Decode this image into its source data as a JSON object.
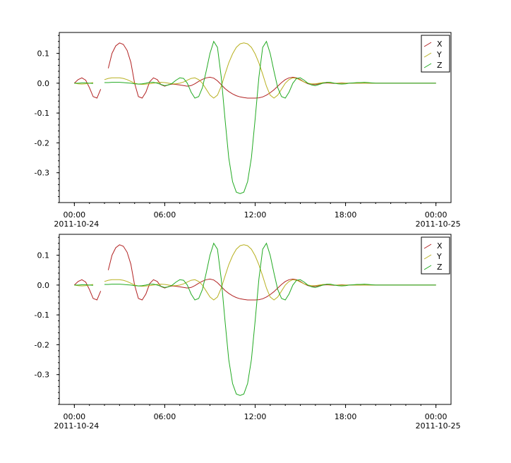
{
  "chart_data": [
    {
      "type": "line",
      "title": "",
      "xlabel": "",
      "ylabel": "",
      "x_ticks": [
        {
          "time": "00:00",
          "date": "2011-10-24",
          "hours": 0
        },
        {
          "time": "06:00",
          "date": "",
          "hours": 6
        },
        {
          "time": "12:00",
          "date": "",
          "hours": 12
        },
        {
          "time": "18:00",
          "date": "",
          "hours": 18
        },
        {
          "time": "00:00",
          "date": "2011-10-25",
          "hours": 24
        }
      ],
      "xlim_hours": [
        -1,
        25
      ],
      "y_ticks": [
        "0.1",
        "0.0",
        "-0.1",
        "-0.2",
        "-0.3"
      ],
      "ylim": [
        -0.4,
        0.17
      ],
      "legend_position": "top-right",
      "grid": false,
      "series": [
        {
          "name": "X",
          "color": "#b22222"
        },
        {
          "name": "Y",
          "color": "#b8b020"
        },
        {
          "name": "Z",
          "color": "#22aa22"
        }
      ]
    },
    {
      "type": "line",
      "title": "",
      "xlabel": "",
      "ylabel": "",
      "x_ticks": [
        {
          "time": "00:00",
          "date": "2011-10-24",
          "hours": 0
        },
        {
          "time": "06:00",
          "date": "",
          "hours": 6
        },
        {
          "time": "12:00",
          "date": "",
          "hours": 12
        },
        {
          "time": "18:00",
          "date": "",
          "hours": 18
        },
        {
          "time": "00:00",
          "date": "2011-10-25",
          "hours": 24
        }
      ],
      "xlim_hours": [
        -1,
        25
      ],
      "y_ticks": [
        "0.1",
        "0.0",
        "-0.1",
        "-0.2",
        "-0.3"
      ],
      "ylim": [
        -0.4,
        0.17
      ],
      "legend_position": "top-right",
      "grid": false,
      "series": [
        {
          "name": "X",
          "color": "#b22222"
        },
        {
          "name": "Y",
          "color": "#b8b020"
        },
        {
          "name": "Z",
          "color": "#22aa22"
        }
      ]
    }
  ],
  "series_values": {
    "x_hours": [
      0.0,
      0.25,
      0.5,
      0.75,
      1.0,
      1.25,
      1.5,
      1.75,
      2.0,
      2.25,
      2.5,
      2.75,
      3.0,
      3.25,
      3.5,
      3.75,
      4.0,
      4.25,
      4.5,
      4.75,
      5.0,
      5.25,
      5.5,
      5.75,
      6.0,
      6.25,
      6.5,
      6.75,
      7.0,
      7.25,
      7.5,
      7.75,
      8.0,
      8.25,
      8.5,
      8.75,
      9.0,
      9.25,
      9.5,
      9.75,
      10.0,
      10.25,
      10.5,
      10.75,
      11.0,
      11.25,
      11.5,
      11.75,
      12.0,
      12.25,
      12.5,
      12.75,
      13.0,
      13.25,
      13.5,
      13.75,
      14.0,
      14.25,
      14.5,
      14.75,
      15.0,
      15.25,
      15.5,
      15.75,
      16.0,
      16.25,
      16.5,
      16.75,
      17.0,
      17.25,
      17.5,
      17.75,
      18.0,
      18.25,
      18.5,
      18.75,
      19.0,
      19.25,
      19.5,
      19.75,
      20.0,
      20.25,
      20.5,
      20.75,
      21.0,
      21.25,
      21.5,
      21.75,
      22.0,
      22.25,
      22.5,
      22.75,
      23.0,
      23.25,
      23.5,
      23.75,
      24.0
    ],
    "X": [
      0.0,
      0.012,
      0.018,
      0.01,
      -0.015,
      -0.045,
      -0.05,
      -0.02,
      null,
      0.05,
      0.1,
      0.125,
      0.135,
      0.13,
      0.11,
      0.07,
      0.0,
      -0.045,
      -0.05,
      -0.03,
      0.005,
      0.018,
      0.012,
      -0.005,
      -0.01,
      -0.005,
      -0.003,
      -0.004,
      -0.006,
      -0.008,
      -0.01,
      -0.008,
      -0.002,
      0.006,
      0.013,
      0.018,
      0.02,
      0.017,
      0.008,
      -0.005,
      -0.018,
      -0.028,
      -0.036,
      -0.042,
      -0.046,
      -0.048,
      -0.05,
      -0.05,
      -0.05,
      -0.049,
      -0.046,
      -0.04,
      -0.032,
      -0.022,
      -0.01,
      0.002,
      0.012,
      0.018,
      0.02,
      0.018,
      0.012,
      0.004,
      -0.002,
      -0.005,
      -0.004,
      -0.002,
      0.0,
      0.001,
      0.0,
      -0.001,
      0.0,
      0.001,
      0.0,
      0.0,
      0.0,
      0.0,
      0.0,
      0.0,
      0.0,
      0.0,
      0.0,
      0.0,
      0.0,
      0.0,
      0.0,
      0.0,
      0.0,
      0.0,
      0.0,
      0.0,
      0.0,
      0.0,
      0.0,
      0.0,
      0.0,
      0.0,
      0.0
    ],
    "Y": [
      0.0,
      -0.002,
      -0.003,
      -0.002,
      0.0,
      0.002,
      null,
      null,
      0.012,
      0.016,
      0.018,
      0.018,
      0.018,
      0.016,
      0.012,
      0.006,
      0.0,
      -0.003,
      -0.004,
      -0.003,
      -0.002,
      0.0,
      0.002,
      0.003,
      0.002,
      0.0,
      -0.002,
      -0.002,
      0.0,
      0.004,
      0.01,
      0.016,
      0.018,
      0.012,
      0.0,
      -0.02,
      -0.04,
      -0.05,
      -0.04,
      -0.01,
      0.03,
      0.068,
      0.098,
      0.12,
      0.132,
      0.135,
      0.132,
      0.12,
      0.098,
      0.068,
      0.03,
      -0.01,
      -0.04,
      -0.05,
      -0.04,
      -0.02,
      0.0,
      0.012,
      0.018,
      0.016,
      0.01,
      0.004,
      0.0,
      -0.002,
      -0.002,
      0.0,
      0.002,
      0.002,
      0.001,
      0.0,
      0.0,
      0.0,
      0.0,
      0.0,
      0.0,
      0.0,
      0.0,
      0.0,
      0.0,
      0.0,
      0.0,
      0.0,
      0.0,
      0.0,
      0.0,
      0.0,
      0.0,
      0.0,
      0.0,
      0.0,
      0.0,
      0.0,
      0.0,
      0.0,
      0.0,
      0.0,
      0.0
    ],
    "Z": [
      0.0,
      0.0,
      0.001,
      0.001,
      0.0,
      -0.001,
      null,
      null,
      0.002,
      0.002,
      0.003,
      0.003,
      0.003,
      0.002,
      0.001,
      0.0,
      -0.002,
      -0.003,
      -0.002,
      0.0,
      0.003,
      0.003,
      0.0,
      -0.004,
      -0.008,
      -0.006,
      0.0,
      0.01,
      0.018,
      0.016,
      0.0,
      -0.03,
      -0.05,
      -0.045,
      -0.015,
      0.04,
      0.1,
      0.14,
      0.12,
      0.02,
      -0.12,
      -0.25,
      -0.33,
      -0.365,
      -0.37,
      -0.365,
      -0.33,
      -0.25,
      -0.12,
      0.02,
      0.12,
      0.14,
      0.1,
      0.04,
      -0.015,
      -0.045,
      -0.05,
      -0.03,
      0.0,
      0.016,
      0.018,
      0.01,
      0.0,
      -0.006,
      -0.008,
      -0.004,
      0.0,
      0.003,
      0.003,
      0.0,
      -0.002,
      -0.003,
      -0.002,
      0.0,
      0.001,
      0.002,
      0.002,
      0.003,
      0.002,
      0.001,
      0.0,
      0.0,
      0.0,
      0.0,
      0.0,
      0.0,
      0.0,
      0.0,
      0.0,
      0.0,
      0.0,
      0.0,
      0.0,
      0.0,
      0.0,
      0.0,
      0.0
    ]
  }
}
